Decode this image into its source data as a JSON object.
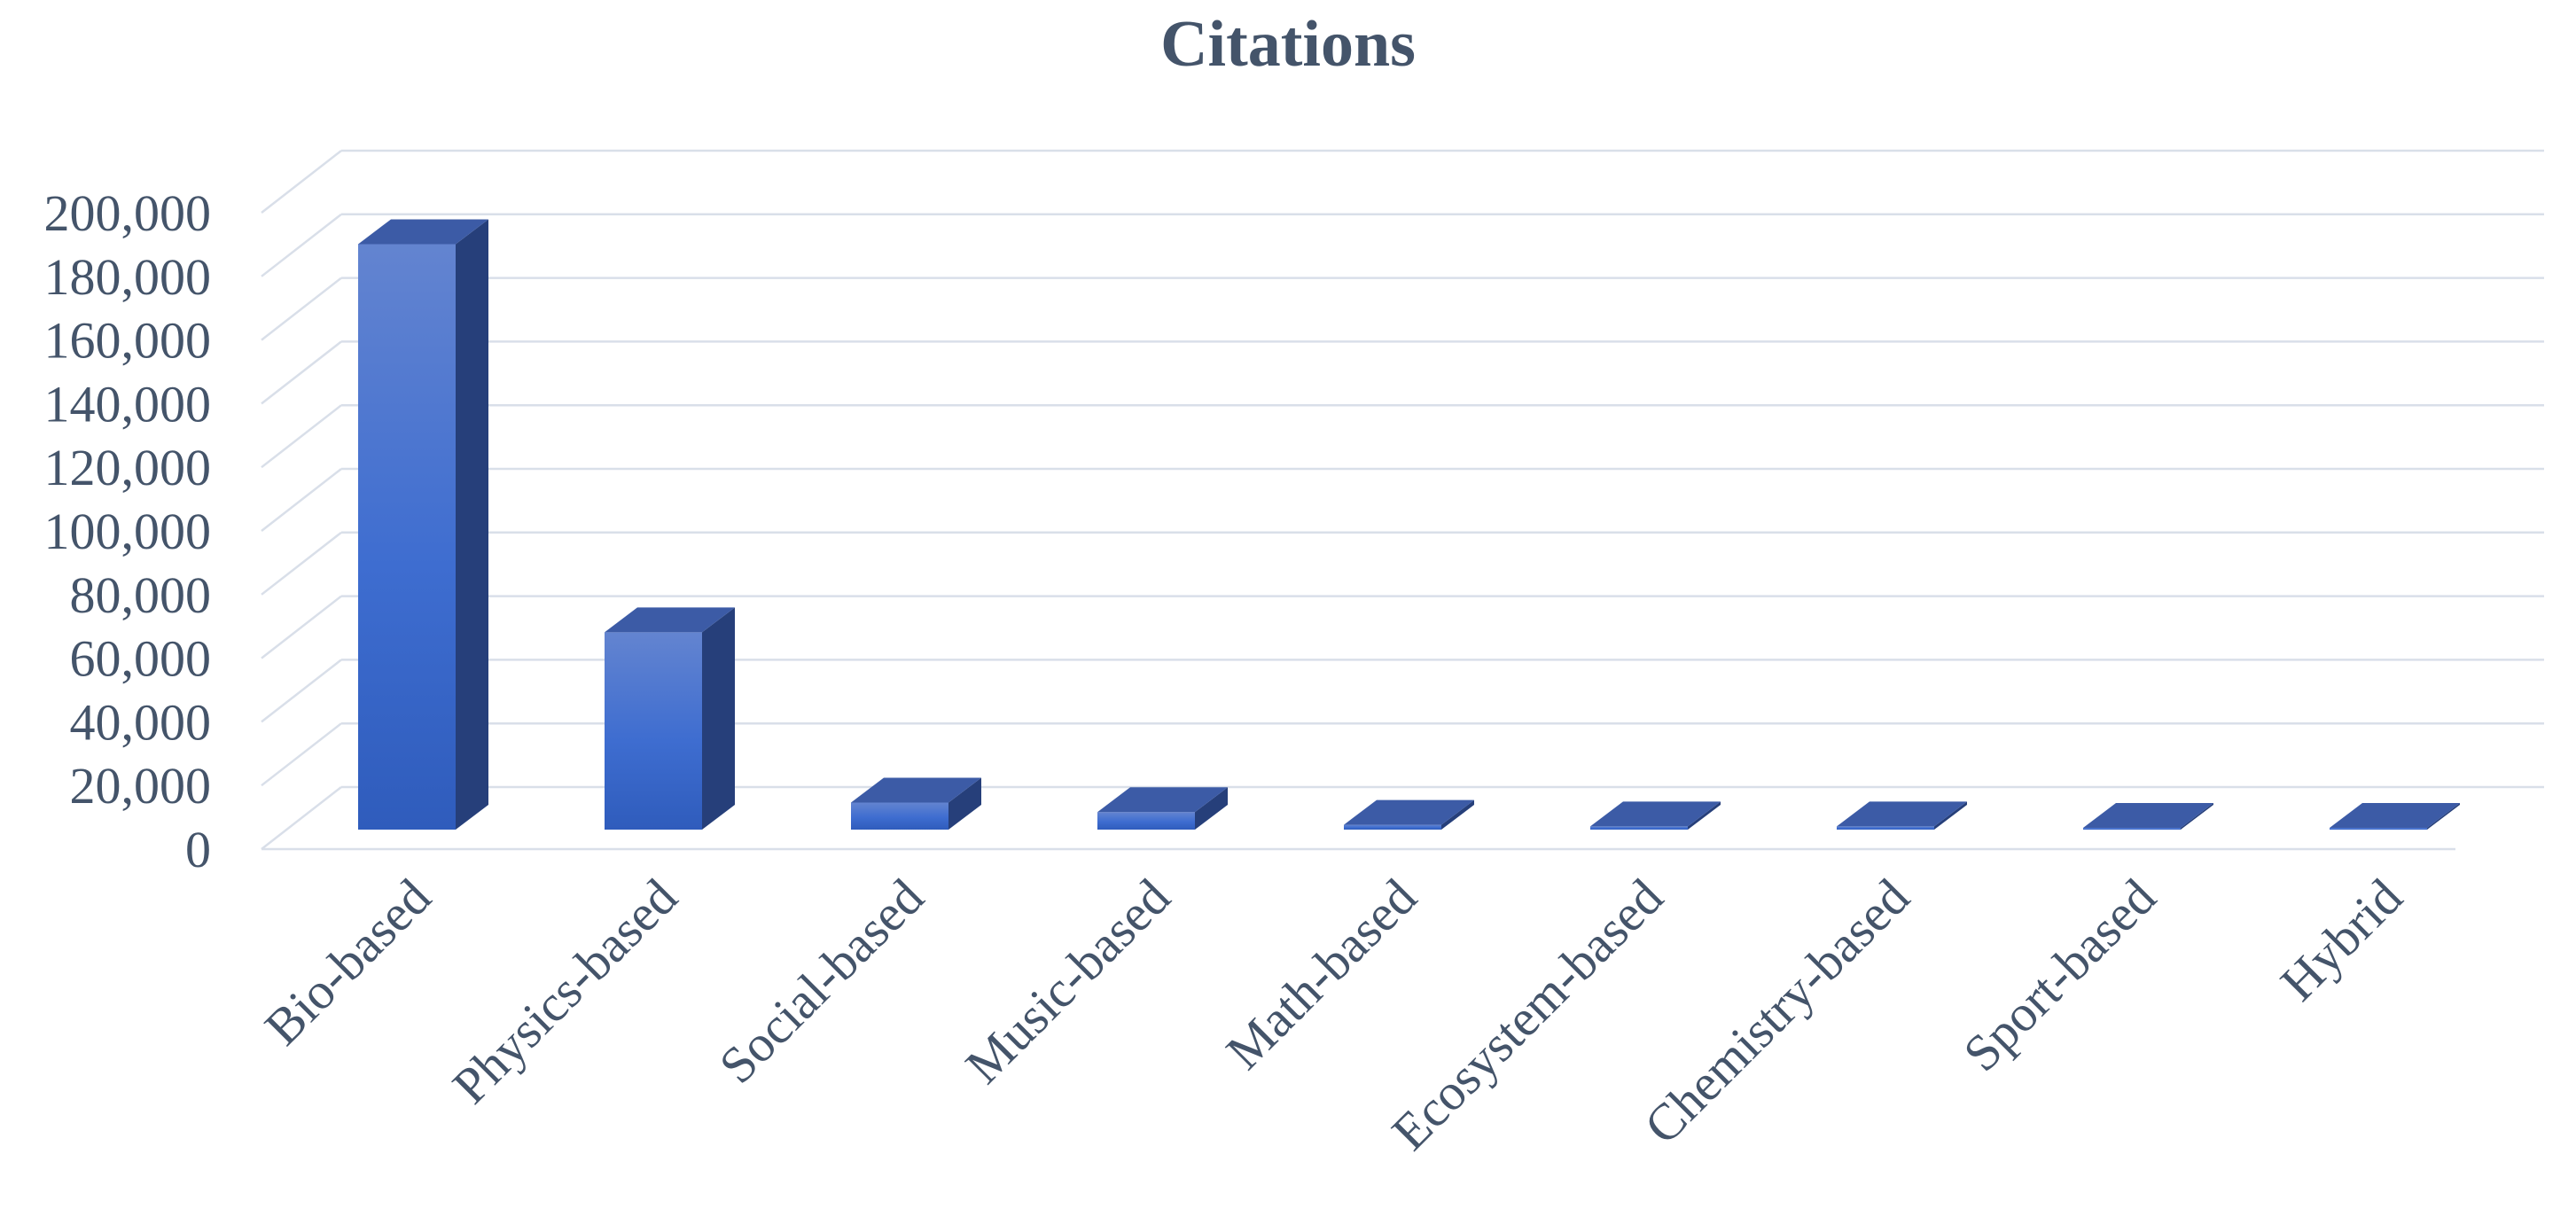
{
  "chart_data": {
    "type": "bar",
    "title": "Citations",
    "xlabel": "",
    "ylabel": "",
    "categories": [
      "Bio-based",
      "Physics-based",
      "Social-based",
      "Music-based",
      "Math-based",
      "Ecosystem-based",
      "Chemistry-based",
      "Sport-based",
      "Hybrid"
    ],
    "values": [
      184000,
      62000,
      8500,
      5500,
      1500,
      1000,
      1000,
      300,
      200
    ],
    "ylim": [
      0,
      200000
    ],
    "yticks": [
      "0",
      "20,000",
      "40,000",
      "60,000",
      "80,000",
      "100,000",
      "120,000",
      "140,000",
      "160,000",
      "180,000",
      "200,000"
    ],
    "grid": true,
    "legend": "none",
    "colors": {
      "bar_front_top": "#6384d0",
      "bar_front_mid": "#3e6dd0",
      "bar_front_bottom": "#2f5cbc",
      "bar_side": "#263f7a",
      "bar_top": "#3c5ba6",
      "grid": "#d9dfe9",
      "text": "#44546a"
    }
  }
}
